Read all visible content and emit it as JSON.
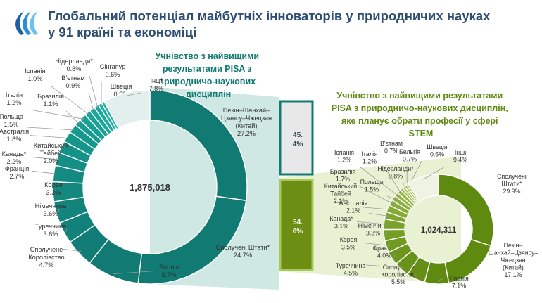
{
  "title": "Глобальний потенціал майбутніх інноваторів у природничих науках у 91 країні та економіці",
  "colors": {
    "title": "#2e4d72",
    "teal_dark": "#117a73",
    "teal_light": "#1bb0a3",
    "green_dark": "#5f8a10",
    "green_light": "#a8c95a",
    "others_teal": "#e3efec",
    "others_green": "#eef3e4",
    "band_teal": "#cfe8e4",
    "band_green": "#e8f2d3",
    "bar_green": "#6c8e13"
  },
  "left_chart": {
    "heading": "Учнівство з найвищими результатами PISA з природничо-наукових дисциплін",
    "total": "1,875,018"
  },
  "middle_bar": {
    "top_label": "45.\n4%",
    "bottom_label": "54.\n6%",
    "top_value": 45.4,
    "bottom_value": 54.6
  },
  "right_chart": {
    "heading": "Учнівство з найвищими результатами PISA з природничо-наукових дисциплін, яке планує обрати професії у сфері STEM",
    "total": "1,024,311"
  },
  "chart_data": [
    {
      "type": "pie",
      "title": "Учнівство з найвищими результатами PISA з природничо-наукових дисциплін",
      "center_label": "1,875,018",
      "slices": [
        {
          "label": "Пекін–Шанхай–Цзянсу–Чжецзян (Китай)",
          "value": 27.2,
          "text": "27.2%"
        },
        {
          "label": "Сполучені Штати*",
          "value": 24.7,
          "text": "24.7%"
        },
        {
          "label": "Японія",
          "value": 8.7,
          "text": "8.7%"
        },
        {
          "label": "Сполучене Королівство",
          "value": 4.7,
          "text": "4.7%"
        },
        {
          "label": "Туреччина",
          "value": 3.6,
          "text": "3.6%"
        },
        {
          "label": "Німеччина",
          "value": 3.6,
          "text": "3.6%"
        },
        {
          "label": "Корея",
          "value": 3.3,
          "text": "3.3%"
        },
        {
          "label": "Франція",
          "value": 2.7,
          "text": "2.7%"
        },
        {
          "label": "Канада*",
          "value": 2.2,
          "text": "2.2%"
        },
        {
          "label": "Китайський Тайбей",
          "value": 2.0,
          "text": "2.0%"
        },
        {
          "label": "Австралія",
          "value": 1.8,
          "text": "1.8%"
        },
        {
          "label": "Польща",
          "value": 1.5,
          "text": "1.5%"
        },
        {
          "label": "Бразилія",
          "value": 1.1,
          "text": "1.1%"
        },
        {
          "label": "Італія",
          "value": 1.2,
          "text": "1.2%"
        },
        {
          "label": "Іспанія",
          "value": 1.0,
          "text": "1.0%"
        },
        {
          "label": "В'єтнам",
          "value": 0.9,
          "text": "0.9%"
        },
        {
          "label": "Нідерланди*",
          "value": 0.8,
          "text": "0.8%"
        },
        {
          "label": "Сінгапур",
          "value": 0.6,
          "text": "0.6%"
        },
        {
          "label": "Швеція",
          "value": 0.5,
          "text": "0.5%"
        },
        {
          "label": "Інші",
          "value": 7.8,
          "text": "7.8%"
        }
      ]
    },
    {
      "type": "pie",
      "title": "Учнівство з найвищими результатами PISA з природничо-наукових дисциплін, яке планує обрати професії у сфері STEM",
      "center_label": "1,024,311",
      "slices": [
        {
          "label": "Сполучені Штати*",
          "value": 29.9,
          "text": "29.9%"
        },
        {
          "label": "Пекін–Шанхай–Цзянсу–Чжецзян (Китай)",
          "value": 17.1,
          "text": "17.1%"
        },
        {
          "label": "Японія",
          "value": 7.1,
          "text": "7.1%"
        },
        {
          "label": "Сполучене Королівство",
          "value": 5.5,
          "text": "5.5%"
        },
        {
          "label": "Туреччина",
          "value": 4.5,
          "text": "4.5%"
        },
        {
          "label": "Франція",
          "value": 4.0,
          "text": "4.0%"
        },
        {
          "label": "Корея",
          "value": 3.5,
          "text": "3.5%"
        },
        {
          "label": "Німеччина",
          "value": 3.3,
          "text": "3.3%"
        },
        {
          "label": "Канада*",
          "value": 3.1,
          "text": "3.1%"
        },
        {
          "label": "Австралія",
          "value": 2.1,
          "text": "2.1%"
        },
        {
          "label": "Китайський Тайбей",
          "value": 2.1,
          "text": "2.1%"
        },
        {
          "label": "Бразилія",
          "value": 1.7,
          "text": "1.7%"
        },
        {
          "label": "Польща",
          "value": 1.5,
          "text": "1.5%"
        },
        {
          "label": "Іспанія",
          "value": 1.2,
          "text": "1.2%"
        },
        {
          "label": "Італія",
          "value": 1.2,
          "text": "1.2%"
        },
        {
          "label": "Нідерланди*",
          "value": 0.8,
          "text": "0.8%"
        },
        {
          "label": "В'єтнам",
          "value": 0.7,
          "text": "0.7%"
        },
        {
          "label": "Бельгія",
          "value": 0.7,
          "text": "0.7%"
        },
        {
          "label": "Швеція",
          "value": 0.6,
          "text": "0.6%"
        },
        {
          "label": "Інші",
          "value": 9.4,
          "text": "9.4%"
        }
      ]
    }
  ]
}
